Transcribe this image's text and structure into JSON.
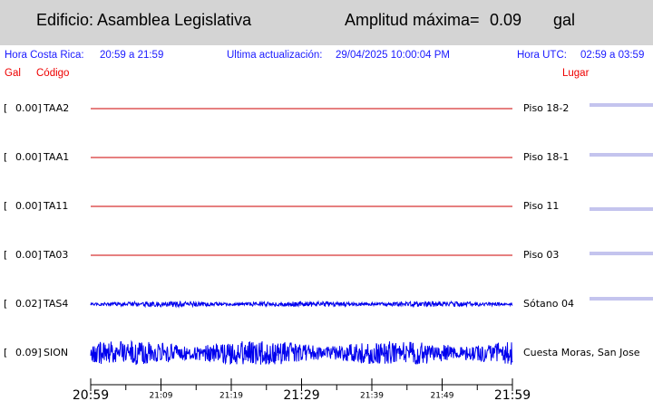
{
  "header": {
    "building": "Edificio: Asamblea Legislativa",
    "amplitude_label": "Amplitud máxima=",
    "amplitude": "0.09",
    "unit": "gal"
  },
  "info": {
    "local_label": "Hora Costa Rica:",
    "local_range": "20:59 a 21:59",
    "update_label": "Ultima actualización:",
    "update": "29/04/2025 10:00:04 PM",
    "utc_label": "Hora UTC:",
    "utc_range": "02:59 a 03:59"
  },
  "columns": {
    "gal": "Gal",
    "code": "Código",
    "place": "Lugar"
  },
  "stations": [
    {
      "gal": "0.00",
      "code": "TAA2",
      "place": "Piso 18-2",
      "color": "#cc0000"
    },
    {
      "gal": "0.00",
      "code": "TAA1",
      "place": "Piso 18-1",
      "color": "#cc0000"
    },
    {
      "gal": "0.00",
      "code": "TA11",
      "place": "Piso 11",
      "color": "#cc0000"
    },
    {
      "gal": "0.00",
      "code": "TA03",
      "place": "Piso 03",
      "color": "#cc0000"
    },
    {
      "gal": "0.02",
      "code": "TAS4",
      "place": "Sótano 04",
      "color": "#0000ee"
    },
    {
      "gal": "0.09",
      "code": "SION",
      "place": "Cuesta Moras, San Jose",
      "color": "#0000ee"
    }
  ],
  "time_axis": [
    "20:59",
    "21:09",
    "21:19",
    "21:29",
    "21:39",
    "21:49",
    "21:59"
  ]
}
